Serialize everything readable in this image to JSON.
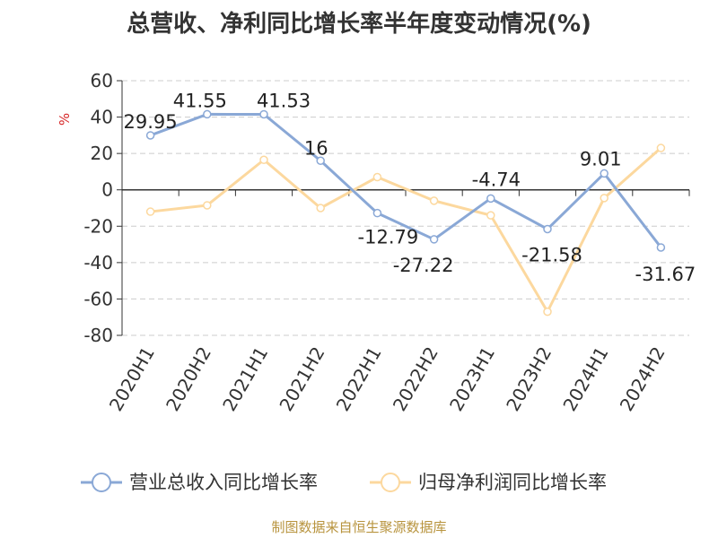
{
  "title": "总营收、净利同比增长率半年度变动情况(%)",
  "source": "制图数据来自恒生聚源数据库",
  "chart_data": {
    "type": "line",
    "categories": [
      "2020H1",
      "2020H2",
      "2021H1",
      "2021H2",
      "2022H1",
      "2022H2",
      "2023H1",
      "2023H2",
      "2024H1",
      "2024H2"
    ],
    "ylabel": "%",
    "ylim": [
      -80,
      60
    ],
    "yticks": [
      60,
      40,
      20,
      0,
      -20,
      -40,
      -60,
      -80
    ],
    "grid": true,
    "legend": "bottom",
    "series": [
      {
        "name": "营业总收入同比增长率",
        "color": "#8aa8d6",
        "values": [
          29.95,
          41.55,
          41.53,
          16,
          -12.79,
          -27.22,
          -4.74,
          -21.58,
          9.01,
          -31.67
        ],
        "labels": [
          "29.95",
          "41.55",
          "41.53",
          "16",
          "-12.79",
          "-27.22",
          "-4.74",
          "-21.58",
          "9.01",
          "-31.67"
        ]
      },
      {
        "name": "归母净利润同比增长率",
        "color": "#fcd89e",
        "values": [
          -12,
          -8.5,
          16.5,
          -10,
          7,
          -6,
          -14,
          -67,
          -4.5,
          23
        ]
      }
    ]
  }
}
